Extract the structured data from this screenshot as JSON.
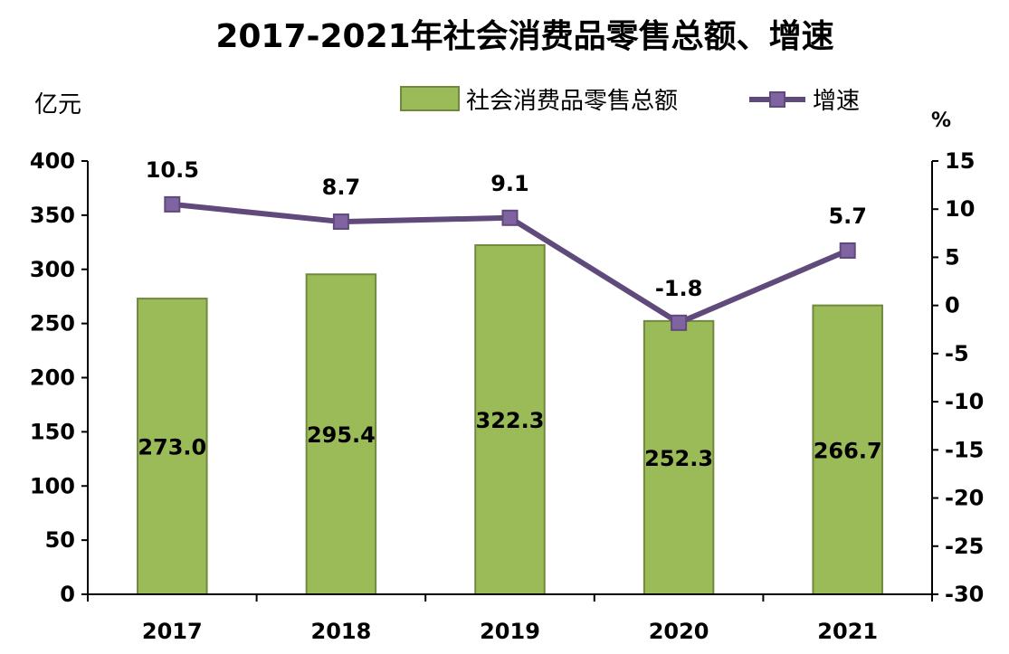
{
  "chart_data": {
    "type": "bar",
    "title": "2017-2021年社会消费品零售总额、增速",
    "categories": [
      "2017",
      "2018",
      "2019",
      "2020",
      "2021"
    ],
    "y_left": {
      "unit": "亿元",
      "range": [
        0,
        400
      ],
      "ticks": [
        0,
        50,
        100,
        150,
        200,
        250,
        300,
        350,
        400
      ]
    },
    "y_right": {
      "unit": "%",
      "range": [
        -30,
        15
      ],
      "ticks": [
        -30,
        -25,
        -20,
        -15,
        -10,
        -5,
        0,
        5,
        10,
        15
      ]
    },
    "series": [
      {
        "name": "社会消费品零售总额",
        "type": "bar",
        "axis": "left",
        "color": "#9bbb59",
        "edge": "#71893f",
        "values": [
          273.0,
          295.4,
          322.3,
          252.3,
          266.7
        ],
        "labels": [
          "273.0",
          "295.4",
          "322.3",
          "252.3",
          "266.7"
        ]
      },
      {
        "name": "增速",
        "type": "line",
        "axis": "right",
        "color": "#604a7b",
        "marker": "#8064a2",
        "values": [
          10.5,
          8.7,
          9.1,
          -1.8,
          5.7
        ],
        "labels": [
          "10.5",
          "8.7",
          "9.1",
          "-1.8",
          "5.7"
        ]
      }
    ],
    "legend_position": "top-right",
    "grid": false
  }
}
